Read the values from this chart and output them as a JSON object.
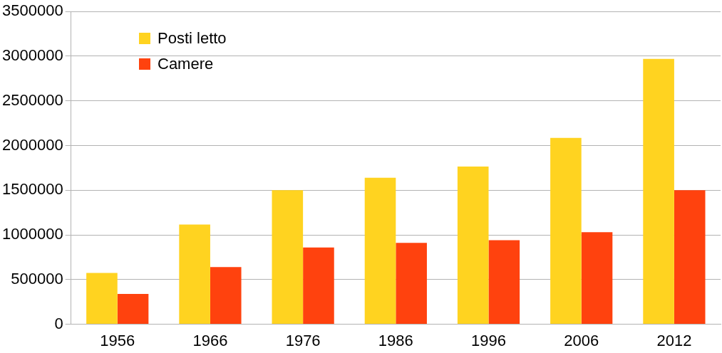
{
  "chart_data": {
    "type": "bar",
    "categories": [
      "1956",
      "1966",
      "1976",
      "1986",
      "1996",
      "2006",
      "2012"
    ],
    "series": [
      {
        "name": "Posti letto",
        "color": "#ffd320",
        "values": [
          575000,
          1115000,
          1500000,
          1640000,
          1765000,
          2085000,
          2970000
        ]
      },
      {
        "name": "Camere",
        "color": "#ff420e",
        "values": [
          340000,
          640000,
          860000,
          910000,
          940000,
          1030000,
          1500000
        ]
      }
    ],
    "ylim": [
      0,
      3500000
    ],
    "yticks": [
      0,
      500000,
      1000000,
      1500000,
      2000000,
      2500000,
      3000000,
      3500000
    ],
    "grid": "y",
    "legend": "top left"
  }
}
